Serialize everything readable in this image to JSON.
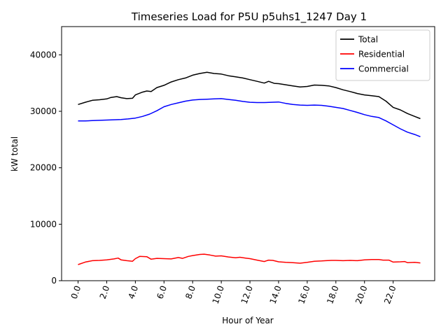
{
  "chart_data": {
    "type": "line",
    "title": "Timeseries Load for P5U p5uhs1_1247  Day 1",
    "xlabel": "Hour of Year",
    "ylabel": "kW total",
    "xlim": [
      -1.15,
      24.9
    ],
    "ylim": [
      0,
      45000
    ],
    "xticks": [
      0,
      2,
      4,
      6,
      8,
      10,
      12,
      14,
      16,
      18,
      20,
      22
    ],
    "xtick_labels": [
      "0.0",
      "2.0",
      "4.0",
      "6.0",
      "8.0",
      "10.0",
      "12.0",
      "14.0",
      "16.0",
      "18.0",
      "20.0",
      "22.0"
    ],
    "yticks": [
      0,
      10000,
      20000,
      30000,
      40000
    ],
    "ytick_labels": [
      "0",
      "10000",
      "20000",
      "30000",
      "40000"
    ],
    "grid": false,
    "legend_position": "top-right",
    "series": [
      {
        "name": "Total",
        "color": "#000000",
        "points": [
          [
            0,
            31200
          ],
          [
            0.5,
            31600
          ],
          [
            1,
            31950
          ],
          [
            1.5,
            32050
          ],
          [
            2,
            32200
          ],
          [
            2.3,
            32450
          ],
          [
            2.7,
            32600
          ],
          [
            3,
            32400
          ],
          [
            3.4,
            32250
          ],
          [
            3.8,
            32300
          ],
          [
            4,
            32900
          ],
          [
            4.5,
            33400
          ],
          [
            4.8,
            33600
          ],
          [
            5.1,
            33500
          ],
          [
            5.5,
            34200
          ],
          [
            6,
            34600
          ],
          [
            6.5,
            35200
          ],
          [
            7,
            35600
          ],
          [
            7.5,
            35900
          ],
          [
            8,
            36400
          ],
          [
            8.5,
            36700
          ],
          [
            9,
            36900
          ],
          [
            9.5,
            36700
          ],
          [
            10,
            36600
          ],
          [
            10.5,
            36300
          ],
          [
            11,
            36100
          ],
          [
            11.5,
            35900
          ],
          [
            12,
            35600
          ],
          [
            12.5,
            35300
          ],
          [
            13,
            35000
          ],
          [
            13.3,
            35300
          ],
          [
            13.7,
            34950
          ],
          [
            14,
            34900
          ],
          [
            14.5,
            34700
          ],
          [
            15,
            34500
          ],
          [
            15.5,
            34300
          ],
          [
            16,
            34400
          ],
          [
            16.5,
            34650
          ],
          [
            17,
            34600
          ],
          [
            17.5,
            34500
          ],
          [
            18,
            34200
          ],
          [
            18.5,
            33800
          ],
          [
            19,
            33500
          ],
          [
            19.5,
            33150
          ],
          [
            20,
            32900
          ],
          [
            20.5,
            32750
          ],
          [
            21,
            32600
          ],
          [
            21.5,
            31800
          ],
          [
            22,
            30700
          ],
          [
            22.5,
            30250
          ],
          [
            23,
            29600
          ],
          [
            23.5,
            29100
          ],
          [
            23.9,
            28700
          ]
        ]
      },
      {
        "name": "Residential",
        "color": "#ff0000",
        "points": [
          [
            0,
            2850
          ],
          [
            0.5,
            3300
          ],
          [
            1,
            3550
          ],
          [
            1.5,
            3600
          ],
          [
            2,
            3700
          ],
          [
            2.5,
            3850
          ],
          [
            2.8,
            4000
          ],
          [
            3,
            3700
          ],
          [
            3.4,
            3550
          ],
          [
            3.8,
            3450
          ],
          [
            4,
            3900
          ],
          [
            4.3,
            4300
          ],
          [
            4.8,
            4250
          ],
          [
            5.1,
            3800
          ],
          [
            5.5,
            3950
          ],
          [
            6,
            3900
          ],
          [
            6.5,
            3850
          ],
          [
            7,
            4100
          ],
          [
            7.3,
            3950
          ],
          [
            7.7,
            4300
          ],
          [
            8,
            4450
          ],
          [
            8.5,
            4650
          ],
          [
            8.8,
            4700
          ],
          [
            9.2,
            4550
          ],
          [
            9.6,
            4350
          ],
          [
            10,
            4400
          ],
          [
            10.5,
            4200
          ],
          [
            11,
            4050
          ],
          [
            11.3,
            4150
          ],
          [
            11.7,
            4000
          ],
          [
            12,
            3900
          ],
          [
            12.5,
            3650
          ],
          [
            13,
            3400
          ],
          [
            13.3,
            3650
          ],
          [
            13.6,
            3600
          ],
          [
            14,
            3350
          ],
          [
            14.5,
            3250
          ],
          [
            15,
            3200
          ],
          [
            15.5,
            3100
          ],
          [
            16,
            3250
          ],
          [
            16.5,
            3450
          ],
          [
            17,
            3500
          ],
          [
            17.3,
            3550
          ],
          [
            17.7,
            3600
          ],
          [
            18,
            3600
          ],
          [
            18.5,
            3550
          ],
          [
            19,
            3600
          ],
          [
            19.5,
            3550
          ],
          [
            20,
            3700
          ],
          [
            20.5,
            3750
          ],
          [
            21,
            3750
          ],
          [
            21.3,
            3650
          ],
          [
            21.7,
            3650
          ],
          [
            22,
            3300
          ],
          [
            22.5,
            3350
          ],
          [
            22.8,
            3400
          ],
          [
            23,
            3200
          ],
          [
            23.5,
            3250
          ],
          [
            23.9,
            3150
          ]
        ]
      },
      {
        "name": "Commercial",
        "color": "#0000ff",
        "points": [
          [
            0,
            28300
          ],
          [
            0.5,
            28300
          ],
          [
            1,
            28350
          ],
          [
            1.5,
            28400
          ],
          [
            2,
            28450
          ],
          [
            2.5,
            28500
          ],
          [
            3,
            28550
          ],
          [
            3.5,
            28650
          ],
          [
            4,
            28800
          ],
          [
            4.5,
            29100
          ],
          [
            5,
            29500
          ],
          [
            5.5,
            30100
          ],
          [
            6,
            30800
          ],
          [
            6.5,
            31200
          ],
          [
            7,
            31500
          ],
          [
            7.5,
            31800
          ],
          [
            8,
            32000
          ],
          [
            8.5,
            32100
          ],
          [
            9,
            32150
          ],
          [
            9.5,
            32200
          ],
          [
            10,
            32250
          ],
          [
            10.5,
            32100
          ],
          [
            11,
            31950
          ],
          [
            11.5,
            31750
          ],
          [
            12,
            31600
          ],
          [
            12.5,
            31550
          ],
          [
            13,
            31550
          ],
          [
            13.5,
            31600
          ],
          [
            14,
            31650
          ],
          [
            14.5,
            31400
          ],
          [
            15,
            31200
          ],
          [
            15.5,
            31100
          ],
          [
            16,
            31050
          ],
          [
            16.5,
            31100
          ],
          [
            17,
            31050
          ],
          [
            17.5,
            30900
          ],
          [
            18,
            30700
          ],
          [
            18.5,
            30500
          ],
          [
            19,
            30150
          ],
          [
            19.5,
            29800
          ],
          [
            20,
            29400
          ],
          [
            20.5,
            29100
          ],
          [
            21,
            28900
          ],
          [
            21.5,
            28300
          ],
          [
            22,
            27600
          ],
          [
            22.5,
            26900
          ],
          [
            23,
            26300
          ],
          [
            23.5,
            25900
          ],
          [
            23.9,
            25500
          ]
        ]
      }
    ]
  }
}
